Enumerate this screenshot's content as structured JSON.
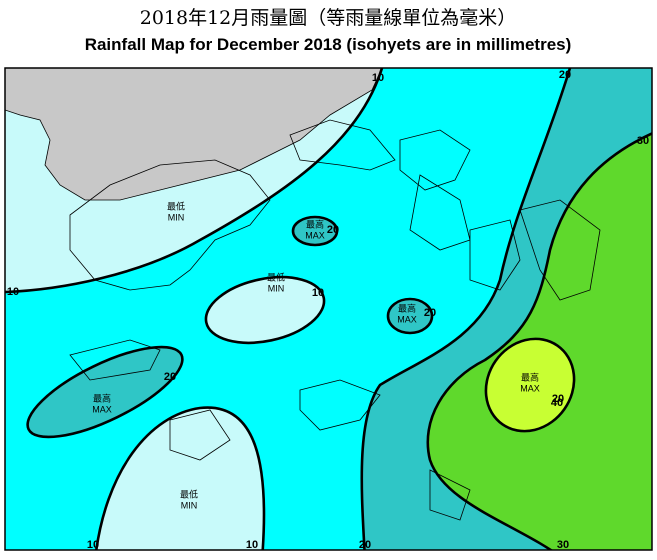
{
  "header": {
    "title_zh": "2018年12月雨量圖（等雨量線單位為毫米）",
    "title_en": "Rainfall Map for December 2018 (isohyets are in millimetres)"
  },
  "contour_labels": [
    10,
    10,
    10,
    10,
    10,
    20,
    20,
    20,
    20,
    20,
    20,
    30,
    30,
    40
  ],
  "region_labels": [
    {
      "zh": "最低",
      "en": "MIN"
    },
    {
      "zh": "最低",
      "en": "MIN"
    },
    {
      "zh": "最低",
      "en": "MIN"
    },
    {
      "zh": "最高",
      "en": "MAX"
    },
    {
      "zh": "最高",
      "en": "MAX"
    },
    {
      "zh": "最高",
      "en": "MAX"
    },
    {
      "zh": "最高",
      "en": "MAX"
    }
  ]
}
